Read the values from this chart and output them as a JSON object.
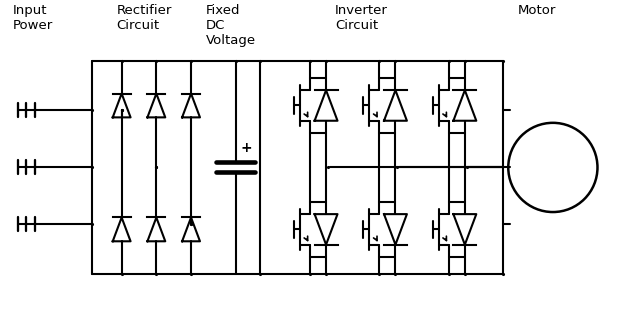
{
  "labels": {
    "input_power": "Input\nPower",
    "rectifier": "Rectifier\nCircuit",
    "dc_voltage": "Fixed\nDC\nVoltage",
    "inverter": "Inverter\nCircuit",
    "motor": "Motor"
  },
  "background_color": "#ffffff",
  "line_color": "#000000",
  "line_width": 1.5,
  "font_size": 9.5
}
